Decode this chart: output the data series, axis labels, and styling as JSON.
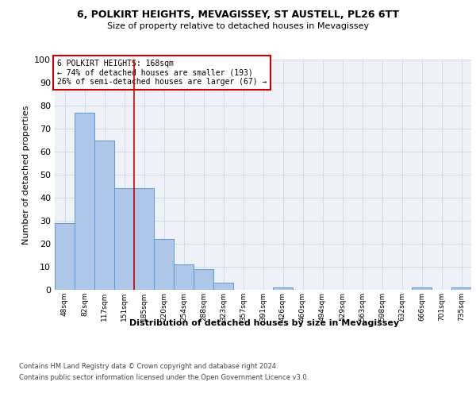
{
  "title_line1": "6, POLKIRT HEIGHTS, MEVAGISSEY, ST AUSTELL, PL26 6TT",
  "title_line2": "Size of property relative to detached houses in Mevagissey",
  "xlabel": "Distribution of detached houses by size in Mevagissey",
  "ylabel": "Number of detached properties",
  "annotation_line1": "6 POLKIRT HEIGHTS: 168sqm",
  "annotation_line2": "← 74% of detached houses are smaller (193)",
  "annotation_line3": "26% of semi-detached houses are larger (67) →",
  "bar_labels": [
    "48sqm",
    "82sqm",
    "117sqm",
    "151sqm",
    "185sqm",
    "220sqm",
    "254sqm",
    "288sqm",
    "323sqm",
    "357sqm",
    "391sqm",
    "426sqm",
    "460sqm",
    "494sqm",
    "529sqm",
    "563sqm",
    "598sqm",
    "632sqm",
    "666sqm",
    "701sqm",
    "735sqm"
  ],
  "bar_values": [
    29,
    77,
    65,
    44,
    44,
    22,
    11,
    9,
    3,
    0,
    0,
    1,
    0,
    0,
    0,
    0,
    0,
    0,
    1,
    0,
    1
  ],
  "bar_color": "#aec6e8",
  "bar_edge_color": "#5b9bd5",
  "vline_x": 3.5,
  "vline_color": "#cc0000",
  "ylim": [
    0,
    100
  ],
  "yticks": [
    0,
    10,
    20,
    30,
    40,
    50,
    60,
    70,
    80,
    90,
    100
  ],
  "annotation_box_color": "#cc0000",
  "bg_color": "#ffffff",
  "grid_color": "#c8d0d8",
  "footer_line1": "Contains HM Land Registry data © Crown copyright and database right 2024.",
  "footer_line2": "Contains public sector information licensed under the Open Government Licence v3.0."
}
